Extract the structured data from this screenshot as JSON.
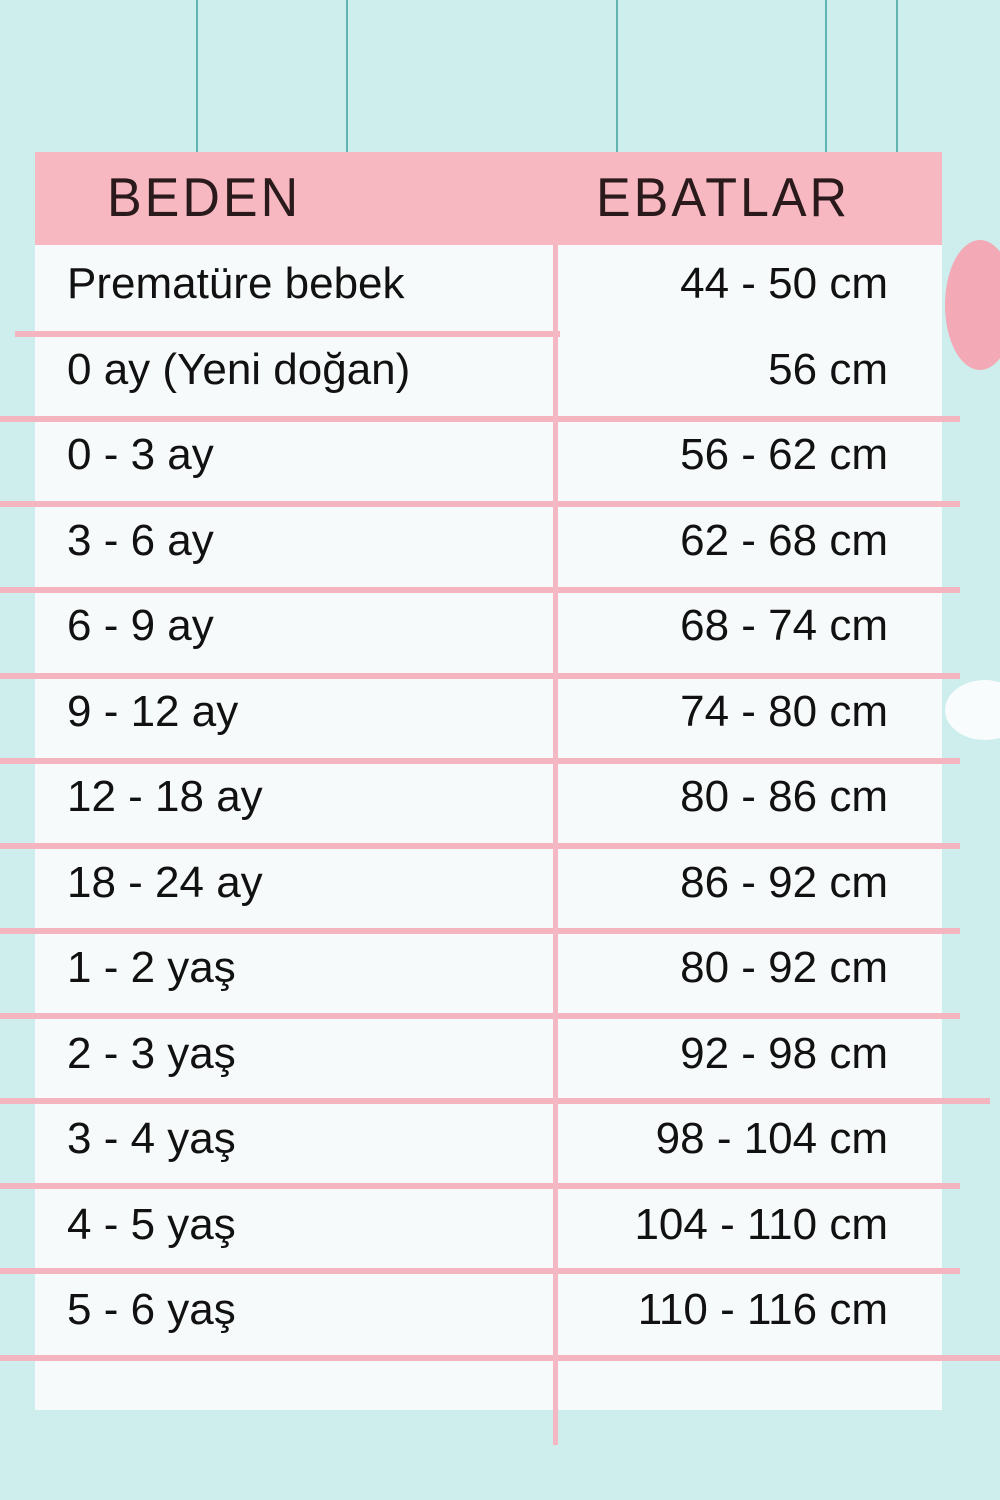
{
  "header": {
    "size_label": "BEDEN",
    "measure_label": "EBATLAR"
  },
  "colors": {
    "background": "#cdeeed",
    "header": "#f7b8c1",
    "lines": "#f4b4c0",
    "table": "#f7fafa"
  },
  "rows": [
    {
      "size": "Prematüre bebek",
      "measure": "44 - 50 cm"
    },
    {
      "size": "0 ay (Yeni doğan)",
      "measure": "56 cm"
    },
    {
      "size": "0 - 3 ay",
      "measure": "56 - 62 cm"
    },
    {
      "size": "3 - 6 ay",
      "measure": "62 - 68 cm"
    },
    {
      "size": "6 - 9 ay",
      "measure": "68 - 74 cm"
    },
    {
      "size": "9 - 12 ay",
      "measure": "74 - 80 cm"
    },
    {
      "size": "12 - 18 ay",
      "measure": "80 - 86 cm"
    },
    {
      "size": "18 - 24 ay",
      "measure": "86 - 92 cm"
    },
    {
      "size": "1 - 2 yaş",
      "measure": "80 - 92 cm"
    },
    {
      "size": "2 - 3 yaş",
      "measure": "92 - 98 cm"
    },
    {
      "size": "3 - 4 yaş",
      "measure": "98 - 104 cm"
    },
    {
      "size": "4 - 5 yaş",
      "measure": "104 - 110 cm"
    },
    {
      "size": "5 - 6 yaş",
      "measure": "110 - 116 cm"
    }
  ]
}
